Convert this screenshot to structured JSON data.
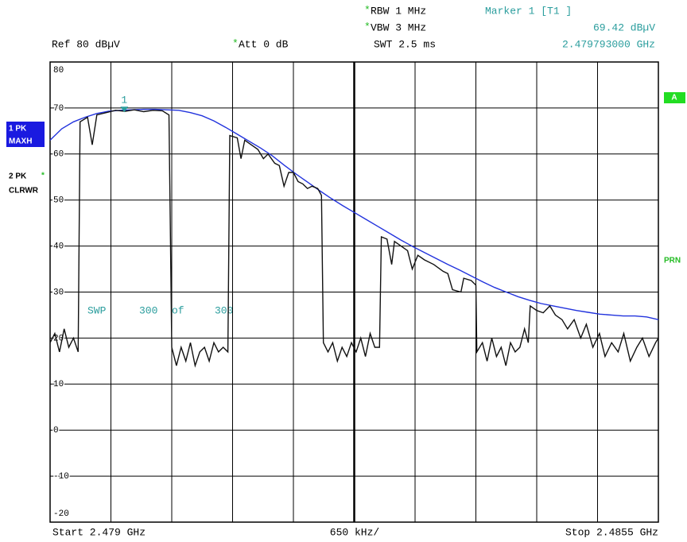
{
  "header": {
    "rbw": "RBW 1 MHz",
    "vbw": "VBW 3 MHz",
    "swt": "SWT 2.5 ms",
    "ref": "Ref 80 dBµV",
    "att": "Att 0 dB",
    "star": "*",
    "marker_title": "Marker 1 [T1 ]",
    "marker_level": "69.42 dBµV",
    "marker_freq": "2.479793000 GHz"
  },
  "side": {
    "trace1_a": "1 PK",
    "trace1_b": "MAXH",
    "trace2_a": "2 PK",
    "trace2_b": "CLRWR",
    "a": "A",
    "prn": "PRN"
  },
  "sweep": [
    "SWP",
    "300",
    "of",
    "300"
  ],
  "footer": {
    "start": "Start 2.479 GHz",
    "span": "650 kHz/",
    "stop": "Stop 2.4855 GHz"
  },
  "chart_data": {
    "type": "line",
    "xlim": [
      2.479,
      2.4855
    ],
    "ylim": [
      -20,
      80
    ],
    "yticks": [
      80,
      70,
      60,
      50,
      40,
      30,
      20,
      10,
      0,
      -10,
      -20
    ],
    "grid": true,
    "marker": {
      "label": "1",
      "x": 2.479793,
      "value": 69.42,
      "color": "#2a9d9d"
    },
    "series": [
      {
        "color": "#2233dd",
        "x": [
          2.479,
          2.479125,
          2.47925,
          2.479375,
          2.4795,
          2.479625,
          2.47975,
          2.479875,
          2.48,
          2.480125,
          2.48025,
          2.480375,
          2.4805,
          2.480625,
          2.48075,
          2.480875,
          2.481,
          2.481125,
          2.48125,
          2.481375,
          2.4815,
          2.481625,
          2.48175,
          2.481875,
          2.482,
          2.482125,
          2.48225,
          2.482375,
          2.4825,
          2.482625,
          2.48275,
          2.482875,
          2.483,
          2.483125,
          2.48325,
          2.483375,
          2.4835,
          2.483625,
          2.48375,
          2.483875,
          2.484,
          2.484125,
          2.48425,
          2.484375,
          2.4845,
          2.484625,
          2.48475,
          2.484875,
          2.485,
          2.485125,
          2.48525,
          2.485375,
          2.4855
        ],
        "values": [
          63,
          65.5,
          67,
          68,
          68.8,
          69.3,
          69.5,
          69.6,
          69.7,
          69.7,
          69.6,
          69.5,
          69,
          68.3,
          67.2,
          65.8,
          64.3,
          62.8,
          61.3,
          59.6,
          57.6,
          55.7,
          53.9,
          52.1,
          50.4,
          48.8,
          47.3,
          45.8,
          44.3,
          42.8,
          41.3,
          39.9,
          38.6,
          37.3,
          36,
          34.8,
          33.5,
          32.2,
          31,
          30,
          29,
          28.2,
          27.5,
          27,
          26.5,
          26,
          25.6,
          25.2,
          25,
          24.8,
          24.8,
          24.6,
          24
        ]
      },
      {
        "color": "#111111",
        "x": [
          2.479,
          2.47905,
          2.4791,
          2.47915,
          2.4792,
          2.47925,
          2.4793,
          2.47932,
          2.4794,
          2.47945,
          2.4795,
          2.4796,
          2.4797,
          2.4798,
          2.4799,
          2.48,
          2.4801,
          2.4802,
          2.48027,
          2.4803,
          2.48035,
          2.4804,
          2.48045,
          2.4805,
          2.48055,
          2.4806,
          2.48065,
          2.4807,
          2.48075,
          2.4808,
          2.48085,
          2.4809,
          2.48092,
          2.481,
          2.48104,
          2.48108,
          2.48115,
          2.48122,
          2.48128,
          2.48133,
          2.4814,
          2.48145,
          2.4815,
          2.48155,
          2.4816,
          2.48165,
          2.4817,
          2.48175,
          2.4818,
          2.48186,
          2.4819,
          2.48192,
          2.48197,
          2.48202,
          2.48207,
          2.48212,
          2.48217,
          2.48222,
          2.48227,
          2.48232,
          2.48237,
          2.48242,
          2.48247,
          2.48252,
          2.48254,
          2.4826,
          2.48265,
          2.48268,
          2.48275,
          2.48282,
          2.48287,
          2.48293,
          2.483,
          2.4831,
          2.4832,
          2.48325,
          2.4833,
          2.48339,
          2.48342,
          2.4835,
          2.48355,
          2.48356,
          2.48362,
          2.48367,
          2.48372,
          2.48377,
          2.48382,
          2.48387,
          2.48392,
          2.48397,
          2.48402,
          2.48407,
          2.48411,
          2.48413,
          2.4842,
          2.48427,
          2.48434,
          2.4844,
          2.48447,
          2.48453,
          2.4846,
          2.48467,
          2.48473,
          2.4848,
          2.48487,
          2.48493,
          2.485,
          2.48507,
          2.48513,
          2.4852,
          2.48527,
          2.48533,
          2.4854,
          2.48547,
          2.4855
        ],
        "values": [
          19,
          21,
          17,
          22,
          18,
          20,
          17,
          67,
          68,
          62,
          68.5,
          69,
          69.5,
          69.3,
          69.6,
          69.2,
          69.5,
          69.4,
          68.5,
          18,
          14,
          18,
          15,
          19,
          14,
          17,
          18,
          15,
          19,
          17,
          18,
          17,
          64,
          63.5,
          59,
          63,
          62,
          61,
          59,
          60,
          58,
          57.5,
          53,
          56,
          56,
          54,
          53.5,
          52.5,
          53,
          52.5,
          51,
          19,
          17,
          19,
          15,
          18,
          16,
          19,
          17,
          20,
          16,
          21,
          18,
          18,
          42,
          41.5,
          36,
          41,
          40,
          39,
          35,
          38,
          37,
          36,
          34.5,
          34,
          30.5,
          30,
          33,
          32.5,
          31.5,
          17,
          19,
          15,
          20,
          16,
          18,
          14,
          19,
          17,
          18,
          22,
          19,
          27,
          26,
          25.5,
          27,
          25,
          24,
          22,
          24,
          20,
          23,
          18,
          21,
          16,
          19,
          17,
          21,
          15,
          18,
          20,
          16,
          19,
          20
        ]
      }
    ]
  }
}
